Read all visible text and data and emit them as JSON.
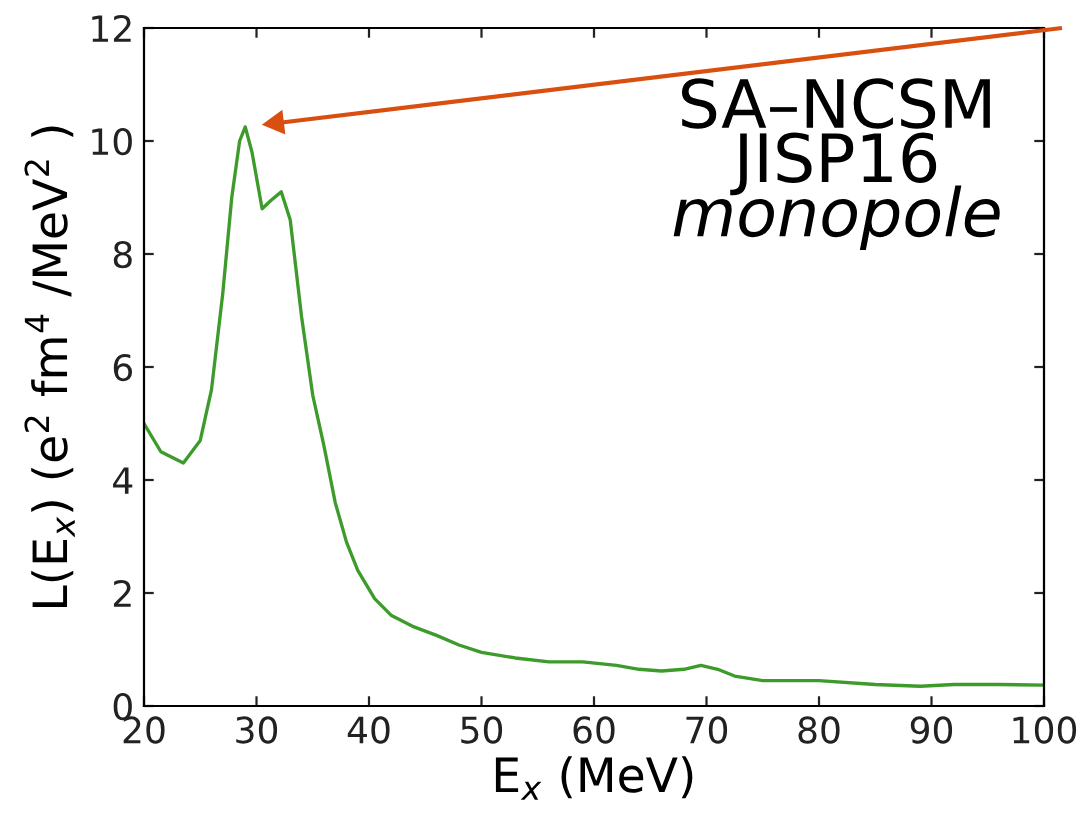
{
  "chart_data": {
    "type": "line",
    "xlabel": "E$_{x}$ (MeV)",
    "ylabel": "L(E$_{x}$) (e$^{2}$ fm$^{4}$ /MeV$^{2}$ )",
    "x": [
      20,
      21.5,
      23.5,
      25,
      26,
      27,
      27.8,
      28.5,
      29,
      29.6,
      30.5,
      31.3,
      32.2,
      33,
      34,
      35,
      36,
      37,
      38,
      39,
      40.5,
      42,
      44,
      46,
      48,
      50,
      53,
      56,
      59,
      62,
      64,
      66,
      68,
      69.5,
      71,
      72.5,
      75,
      80,
      85,
      89,
      92,
      96,
      100
    ],
    "series": [
      {
        "color": "#3d9b2b",
        "values": [
          5.0,
          4.5,
          4.3,
          4.7,
          5.6,
          7.3,
          9.0,
          10.0,
          10.25,
          9.8,
          8.8,
          8.95,
          9.1,
          8.6,
          6.9,
          5.5,
          4.6,
          3.6,
          2.9,
          2.4,
          1.9,
          1.6,
          1.4,
          1.25,
          1.08,
          0.95,
          0.85,
          0.78,
          0.78,
          0.72,
          0.65,
          0.62,
          0.65,
          0.72,
          0.65,
          0.53,
          0.45,
          0.45,
          0.38,
          0.35,
          0.38,
          0.38,
          0.37
        ]
      }
    ],
    "xlim": [
      20,
      100
    ],
    "xticks": [
      20,
      30,
      40,
      50,
      60,
      70,
      80,
      90,
      100
    ],
    "ylim": [
      0,
      12
    ],
    "yticks": [
      0,
      2,
      4,
      6,
      8,
      10,
      12
    ],
    "grid": false,
    "legend": false,
    "marker": "none",
    "line_style": "solid",
    "annotations": [
      "SA–NCSM",
      "JISP16",
      "monopole"
    ]
  }
}
